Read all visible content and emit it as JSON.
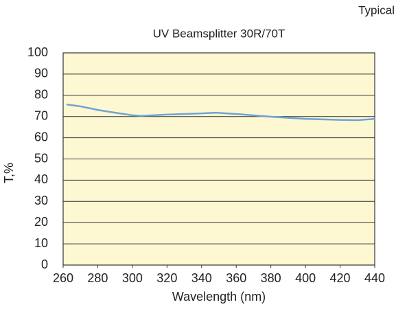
{
  "corner_label": "Typical",
  "chart_data": {
    "type": "line",
    "title": "UV Beamsplitter 30R/70T",
    "x_label": "Wavelength (nm)",
    "y_label": "T,%",
    "x": [
      262,
      270,
      280,
      290,
      300,
      305,
      320,
      340,
      348,
      360,
      380,
      400,
      420,
      430,
      440
    ],
    "series": [
      {
        "color": "#6fa3d6",
        "values": [
          75.7,
          74.8,
          73.1,
          71.8,
          70.6,
          70.3,
          70.9,
          71.5,
          71.8,
          71.2,
          69.9,
          68.9,
          68.4,
          68.3,
          68.9
        ]
      }
    ],
    "xlim": [
      260,
      440
    ],
    "ylim": [
      0,
      100
    ],
    "xticks": [
      260,
      280,
      300,
      320,
      340,
      360,
      380,
      400,
      420,
      440
    ],
    "yticks": [
      0,
      10,
      20,
      30,
      40,
      50,
      60,
      70,
      80,
      90,
      100
    ],
    "grid": true,
    "background": "#fdf8d2"
  }
}
